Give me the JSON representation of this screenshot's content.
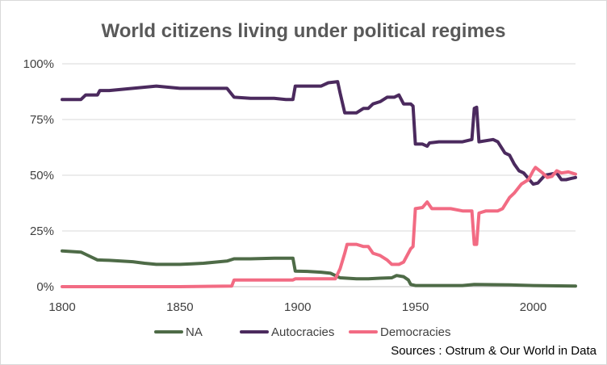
{
  "chart_data": {
    "type": "line",
    "title": "World citizens living under political regimes",
    "xlabel": "",
    "ylabel": "",
    "xlim": [
      1800,
      2018
    ],
    "ylim": [
      0,
      100
    ],
    "x_ticks": [
      "1800",
      "1850",
      "1900",
      "1950",
      "2000"
    ],
    "y_ticks": [
      "0%",
      "25%",
      "50%",
      "75%",
      "100%"
    ],
    "grid": true,
    "legend": "bottom",
    "series": [
      {
        "name": "NA",
        "color": "#4e6b47",
        "points": [
          [
            1800,
            16
          ],
          [
            1808,
            15.5
          ],
          [
            1810,
            14.5
          ],
          [
            1815,
            12
          ],
          [
            1820,
            11.8
          ],
          [
            1825,
            11.5
          ],
          [
            1830,
            11.2
          ],
          [
            1835,
            10.5
          ],
          [
            1840,
            10
          ],
          [
            1845,
            10
          ],
          [
            1850,
            10
          ],
          [
            1855,
            10.2
          ],
          [
            1860,
            10.5
          ],
          [
            1865,
            11
          ],
          [
            1870,
            11.5
          ],
          [
            1873,
            12.5
          ],
          [
            1880,
            12.5
          ],
          [
            1890,
            12.8
          ],
          [
            1898,
            12.8
          ],
          [
            1899,
            7
          ],
          [
            1905,
            6.8
          ],
          [
            1910,
            6.5
          ],
          [
            1914,
            6
          ],
          [
            1916,
            5
          ],
          [
            1918,
            4
          ],
          [
            1925,
            3.5
          ],
          [
            1930,
            3.5
          ],
          [
            1935,
            3.8
          ],
          [
            1940,
            4
          ],
          [
            1942,
            5
          ],
          [
            1945,
            4.5
          ],
          [
            1947,
            3
          ],
          [
            1948,
            1
          ],
          [
            1950,
            0.5
          ],
          [
            1960,
            0.5
          ],
          [
            1970,
            0.5
          ],
          [
            1975,
            1
          ],
          [
            1990,
            0.8
          ],
          [
            2000,
            0.5
          ],
          [
            2018,
            0.3
          ]
        ]
      },
      {
        "name": "Autocracies",
        "color": "#4b2a5e",
        "points": [
          [
            1800,
            84
          ],
          [
            1808,
            84
          ],
          [
            1810,
            86
          ],
          [
            1815,
            86
          ],
          [
            1816,
            88
          ],
          [
            1820,
            88
          ],
          [
            1825,
            88.5
          ],
          [
            1830,
            89
          ],
          [
            1835,
            89.5
          ],
          [
            1840,
            90
          ],
          [
            1845,
            89.5
          ],
          [
            1850,
            89
          ],
          [
            1860,
            89
          ],
          [
            1870,
            89
          ],
          [
            1873,
            85
          ],
          [
            1880,
            84.5
          ],
          [
            1890,
            84.5
          ],
          [
            1895,
            84
          ],
          [
            1898,
            84
          ],
          [
            1899,
            90
          ],
          [
            1910,
            90
          ],
          [
            1913,
            91.5
          ],
          [
            1917,
            92
          ],
          [
            1918,
            87
          ],
          [
            1920,
            78
          ],
          [
            1925,
            78
          ],
          [
            1928,
            80
          ],
          [
            1930,
            80
          ],
          [
            1932,
            82
          ],
          [
            1935,
            83
          ],
          [
            1938,
            85
          ],
          [
            1941,
            85
          ],
          [
            1943,
            86
          ],
          [
            1945,
            82
          ],
          [
            1948,
            82
          ],
          [
            1949,
            81
          ],
          [
            1950,
            64
          ],
          [
            1953,
            64
          ],
          [
            1955,
            63
          ],
          [
            1956,
            64.5
          ],
          [
            1960,
            65
          ],
          [
            1965,
            65
          ],
          [
            1970,
            65
          ],
          [
            1974,
            66
          ],
          [
            1975,
            80
          ],
          [
            1976,
            80.5
          ],
          [
            1977,
            65
          ],
          [
            1983,
            66
          ],
          [
            1985,
            65
          ],
          [
            1988,
            60
          ],
          [
            1990,
            59
          ],
          [
            1992,
            55
          ],
          [
            1994,
            52
          ],
          [
            1996,
            51
          ],
          [
            1998,
            48.5
          ],
          [
            2000,
            46
          ],
          [
            2002,
            46.5
          ],
          [
            2005,
            50
          ],
          [
            2010,
            51
          ],
          [
            2012,
            48
          ],
          [
            2014,
            48
          ],
          [
            2016,
            48.5
          ],
          [
            2018,
            49
          ]
        ]
      },
      {
        "name": "Democracies",
        "color": "#f26b83",
        "points": [
          [
            1800,
            0
          ],
          [
            1850,
            0
          ],
          [
            1872,
            0.3
          ],
          [
            1873,
            3
          ],
          [
            1880,
            3
          ],
          [
            1890,
            3
          ],
          [
            1898,
            3
          ],
          [
            1899,
            3.5
          ],
          [
            1910,
            3.5
          ],
          [
            1916,
            3.5
          ],
          [
            1918,
            8
          ],
          [
            1920,
            15
          ],
          [
            1921,
            19
          ],
          [
            1925,
            19
          ],
          [
            1928,
            18
          ],
          [
            1930,
            18
          ],
          [
            1932,
            15
          ],
          [
            1935,
            14
          ],
          [
            1938,
            12
          ],
          [
            1940,
            10
          ],
          [
            1943,
            10
          ],
          [
            1945,
            11
          ],
          [
            1948,
            17
          ],
          [
            1949,
            18
          ],
          [
            1950,
            35
          ],
          [
            1953,
            35.5
          ],
          [
            1955,
            38
          ],
          [
            1957,
            35
          ],
          [
            1960,
            35
          ],
          [
            1965,
            35
          ],
          [
            1970,
            34
          ],
          [
            1974,
            34
          ],
          [
            1975,
            19
          ],
          [
            1976,
            19
          ],
          [
            1977,
            33
          ],
          [
            1980,
            34
          ],
          [
            1985,
            34
          ],
          [
            1987,
            35
          ],
          [
            1990,
            40
          ],
          [
            1992,
            42
          ],
          [
            1995,
            46
          ],
          [
            1998,
            48
          ],
          [
            2000,
            52
          ],
          [
            2001,
            53.5
          ],
          [
            2004,
            51
          ],
          [
            2006,
            49
          ],
          [
            2008,
            49.5
          ],
          [
            2010,
            52
          ],
          [
            2012,
            51
          ],
          [
            2015,
            51.5
          ],
          [
            2018,
            50.5
          ]
        ]
      }
    ]
  },
  "source": "Sources : Ostrum & Our World in Data"
}
